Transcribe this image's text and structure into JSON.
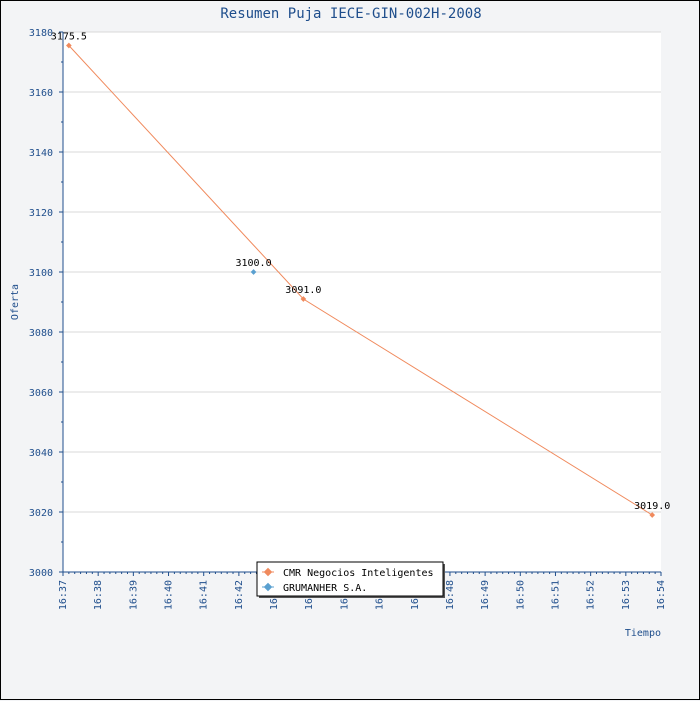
{
  "chart_data": {
    "type": "line",
    "title": "Resumen Puja IECE-GIN-002H-2008",
    "xlabel": "Tiempo",
    "ylabel": "Oferta",
    "ylim": [
      3000,
      3180
    ],
    "yticks": [
      3000,
      3020,
      3040,
      3060,
      3080,
      3100,
      3120,
      3140,
      3160,
      3180
    ],
    "xlim": [
      "16:37",
      "16:54"
    ],
    "xticks": [
      "16:37",
      "16:38",
      "16:39",
      "16:40",
      "16:41",
      "16:42",
      "16:43",
      "16:44",
      "16:45",
      "16:46",
      "16:47",
      "16:48",
      "16:49",
      "16:50",
      "16:51",
      "16:52",
      "16:53",
      "16:54"
    ],
    "grid": true,
    "legend_position": "bottom-center",
    "series": [
      {
        "name": "CMR Negocios Inteligentes",
        "color": "#f08a5d",
        "points": [
          {
            "x": "16:37:10",
            "y": 3175.5,
            "label": "3175.5"
          },
          {
            "x": "16:43:50",
            "y": 3091.0,
            "label": "3091.0"
          },
          {
            "x": "16:53:45",
            "y": 3019.0,
            "label": "3019.0"
          }
        ]
      },
      {
        "name": "GRUMANHER S.A.",
        "color": "#5aa0d0",
        "points": [
          {
            "x": "16:42:25",
            "y": 3100.0,
            "label": "3100.0"
          }
        ]
      }
    ]
  }
}
